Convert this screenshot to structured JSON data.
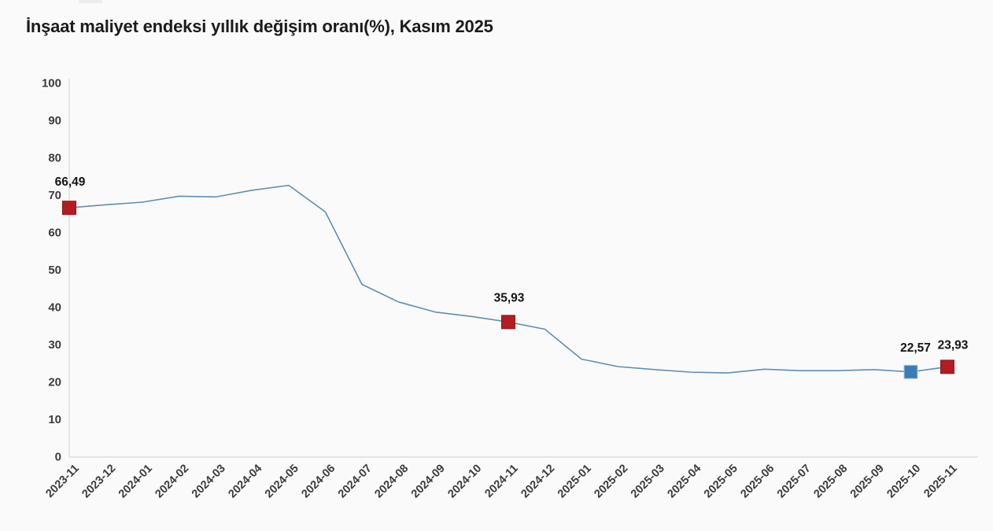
{
  "title": {
    "text": "İnşaat maliyet endeksi yıllık değişim oranı(%), Kasım 2025"
  },
  "page": {
    "background": "#fbfafa"
  },
  "chart_data": {
    "type": "line",
    "title": "İnşaat maliyet endeksi yıllık değişim oranı(%), Kasım 2025",
    "xlabel": "",
    "ylabel": "",
    "ylim": [
      0,
      100
    ],
    "ytick_step": 10,
    "grid": false,
    "legend": "none",
    "line_color": "#5f8fb4",
    "categories": [
      "2023-11",
      "2023-12",
      "2024-01",
      "2024-02",
      "2024-03",
      "2024-04",
      "2024-05",
      "2024-06",
      "2024-07",
      "2024-08",
      "2024-09",
      "2024-10",
      "2024-11",
      "2024-12",
      "2025-01",
      "2025-02",
      "2025-03",
      "2025-04",
      "2025-05",
      "2025-06",
      "2025-07",
      "2025-08",
      "2025-09",
      "2025-10",
      "2025-11"
    ],
    "values": [
      66.49,
      67.3,
      68.0,
      69.6,
      69.4,
      71.2,
      72.5,
      65.4,
      46.0,
      41.3,
      38.6,
      37.4,
      35.93,
      34.0,
      26.0,
      24.0,
      23.2,
      22.5,
      22.3,
      23.3,
      22.9,
      22.9,
      23.2,
      22.57,
      23.93
    ],
    "y_tick_labels": [
      "0",
      "10",
      "20",
      "30",
      "40",
      "50",
      "60",
      "70",
      "80",
      "90",
      "100"
    ],
    "marked_points": [
      {
        "index": 0,
        "category": "2023-11",
        "value": 66.49,
        "label": "66,49",
        "marker_color": "#b11d23",
        "marker_stroke": "#8e161b"
      },
      {
        "index": 12,
        "category": "2024-11",
        "value": 35.93,
        "label": "35,93",
        "marker_color": "#b11d23",
        "marker_stroke": "#8e161b"
      },
      {
        "index": 23,
        "category": "2025-10",
        "value": 22.57,
        "label": "22,57",
        "marker_color": "#3a7db6",
        "marker_stroke": "#a8cbe4"
      },
      {
        "index": 24,
        "category": "2025-11",
        "value": 23.93,
        "label": "23,93",
        "marker_color": "#b11d23",
        "marker_stroke": "#8e161b"
      }
    ],
    "colors": {
      "axis_line": "#dcdcdc",
      "tick_label": "#3c3c3c",
      "point_label": "#141414",
      "marker_red": "#b11d23",
      "marker_blue": "#3a7db6"
    }
  }
}
